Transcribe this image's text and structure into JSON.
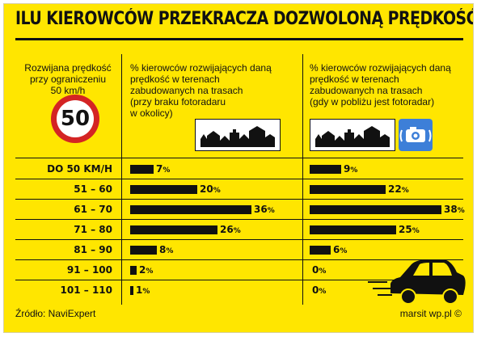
{
  "title": "ILU KIEROWCÓW PRZEKRACZA DOZWOLONĄ PRĘDKOŚĆ?",
  "headers": {
    "col1": [
      "Rozwijana prędkość",
      "przy ograniczeniu",
      "50 km/h"
    ],
    "col2": [
      "% kierowców rozwijających daną",
      "prędkość w terenach",
      "zabudowanych na trasach",
      "(przy braku fotoradaru",
      "w okolicy)"
    ],
    "col3": [
      "% kierowców rozwijających daną",
      "prędkość w terenach",
      "zabudowanych na trasach",
      "(gdy w pobliżu jest fotoradar)"
    ]
  },
  "sign": {
    "value": "50"
  },
  "icons": {
    "town": "town-silhouette-icon",
    "camera": "speed-camera-icon",
    "car": "speeding-car-icon"
  },
  "colors": {
    "background": "#ffe600",
    "bar": "#111111",
    "sign_ring": "#d42424",
    "camera": "#3d7fd8"
  },
  "chart_data": {
    "type": "bar",
    "categories": [
      "DO 50 KM/H",
      "51 – 60",
      "61 – 70",
      "71 – 80",
      "81 – 90",
      "91 – 100",
      "101 – 110"
    ],
    "unit": "%",
    "series": [
      {
        "name": "(przy braku fotoradaru w okolicy)",
        "values": [
          7,
          20,
          36,
          26,
          8,
          2,
          1
        ]
      },
      {
        "name": "(gdy w pobliżu jest fotoradar)",
        "values": [
          9,
          22,
          38,
          25,
          6,
          0,
          0
        ]
      }
    ],
    "xlim": [
      0,
      38
    ]
  },
  "footer": {
    "source": "Źródło: NaviExpert",
    "credit": "marsit wp.pl ©"
  }
}
